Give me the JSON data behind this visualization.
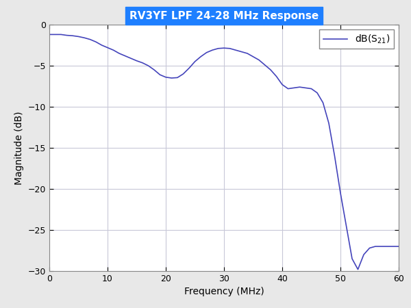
{
  "title": "RV3YF LPF 24-28 MHz Response",
  "title_bg_color": "#1E7FFF",
  "title_text_color": "#FFFFFF",
  "xlabel": "Frequency (MHz)",
  "ylabel": "Magnitude (dB)",
  "xlim": [
    0,
    60
  ],
  "ylim": [
    -30,
    0
  ],
  "xticks": [
    0,
    10,
    20,
    30,
    40,
    50,
    60
  ],
  "yticks": [
    0,
    -5,
    -10,
    -15,
    -20,
    -25,
    -30
  ],
  "line_color": "#4444BB",
  "line_width": 1.2,
  "grid_color": "#C8C8D8",
  "background_color": "#E8E8E8",
  "plot_bg_color": "#FFFFFF",
  "freq_points": [
    0.0,
    0.5,
    1.0,
    2.0,
    3.0,
    4.0,
    5.0,
    6.0,
    7.0,
    8.0,
    9.0,
    10.0,
    11.0,
    12.0,
    13.0,
    14.0,
    15.0,
    16.0,
    17.0,
    18.0,
    19.0,
    20.0,
    21.0,
    22.0,
    23.0,
    24.0,
    25.0,
    26.0,
    27.0,
    28.0,
    29.0,
    30.0,
    31.0,
    32.0,
    33.0,
    34.0,
    35.0,
    36.0,
    37.0,
    38.0,
    39.0,
    40.0,
    41.0,
    42.0,
    43.0,
    44.0,
    45.0,
    46.0,
    47.0,
    48.0,
    49.0,
    50.0,
    51.0,
    52.0,
    53.0,
    54.0,
    55.0,
    56.0,
    57.0,
    58.0,
    59.0,
    60.0
  ],
  "db_points": [
    -1.2,
    -1.2,
    -1.2,
    -1.2,
    -1.3,
    -1.35,
    -1.45,
    -1.6,
    -1.8,
    -2.1,
    -2.5,
    -2.8,
    -3.1,
    -3.5,
    -3.8,
    -4.1,
    -4.4,
    -4.65,
    -5.0,
    -5.5,
    -6.1,
    -6.4,
    -6.5,
    -6.45,
    -6.0,
    -5.3,
    -4.5,
    -3.9,
    -3.4,
    -3.1,
    -2.9,
    -2.85,
    -2.9,
    -3.1,
    -3.3,
    -3.5,
    -3.9,
    -4.3,
    -4.9,
    -5.5,
    -6.3,
    -7.3,
    -7.8,
    -7.7,
    -7.6,
    -7.7,
    -7.8,
    -8.3,
    -9.5,
    -12.0,
    -16.0,
    -20.5,
    -24.5,
    -28.5,
    -29.8,
    -28.0,
    -27.2,
    -27.0,
    -27.0,
    -27.0,
    -27.0,
    -27.0
  ]
}
